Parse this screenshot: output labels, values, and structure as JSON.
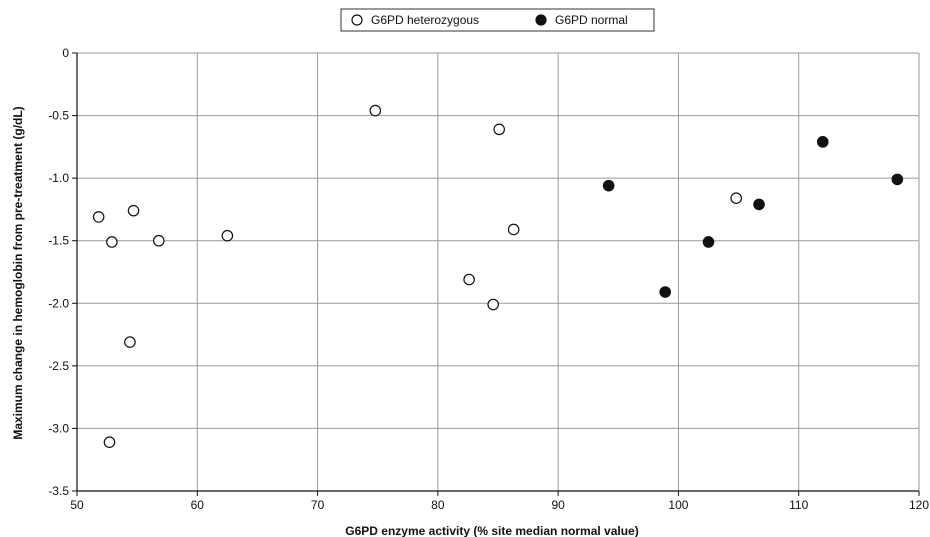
{
  "chart_data": {
    "type": "scatter",
    "xlabel": "G6PD enzyme activity (% site median normal value)",
    "ylabel": "Maximum change in hemoglobin from pre-treatment (g/dL)",
    "xlim": [
      50,
      120
    ],
    "ylim": [
      -3.5,
      0
    ],
    "x_ticks": [
      50,
      60,
      70,
      80,
      90,
      100,
      110,
      120
    ],
    "y_ticks": [
      0,
      -0.5,
      -1.0,
      -1.5,
      -2.0,
      -2.5,
      -3.0,
      -3.5
    ],
    "x_tick_labels": [
      "50",
      "60",
      "70",
      "80",
      "90",
      "100",
      "110",
      "120"
    ],
    "y_tick_labels": [
      "0",
      "-0.5",
      "-1.0",
      "-1.5",
      "-2.0",
      "-2.5",
      "-3.0",
      "-3.5"
    ],
    "grid": true,
    "legend_position": "top-center",
    "series": [
      {
        "name": "G6PD heterozygous",
        "marker": "open-circle",
        "color": "#111111",
        "points": [
          {
            "x": 51.8,
            "y": -1.31
          },
          {
            "x": 52.7,
            "y": -3.11
          },
          {
            "x": 52.9,
            "y": -1.51
          },
          {
            "x": 54.4,
            "y": -2.31
          },
          {
            "x": 54.7,
            "y": -1.26
          },
          {
            "x": 56.8,
            "y": -1.5
          },
          {
            "x": 62.5,
            "y": -1.46
          },
          {
            "x": 74.8,
            "y": -0.46
          },
          {
            "x": 82.6,
            "y": -1.81
          },
          {
            "x": 84.6,
            "y": -2.01
          },
          {
            "x": 85.1,
            "y": -0.61
          },
          {
            "x": 86.3,
            "y": -1.41
          },
          {
            "x": 104.8,
            "y": -1.16
          }
        ]
      },
      {
        "name": "G6PD normal",
        "marker": "filled-circle",
        "color": "#111111",
        "points": [
          {
            "x": 94.2,
            "y": -1.06
          },
          {
            "x": 98.9,
            "y": -1.91
          },
          {
            "x": 102.5,
            "y": -1.51
          },
          {
            "x": 106.7,
            "y": -1.21
          },
          {
            "x": 112.0,
            "y": -0.71
          },
          {
            "x": 118.2,
            "y": -1.01
          }
        ]
      }
    ]
  }
}
